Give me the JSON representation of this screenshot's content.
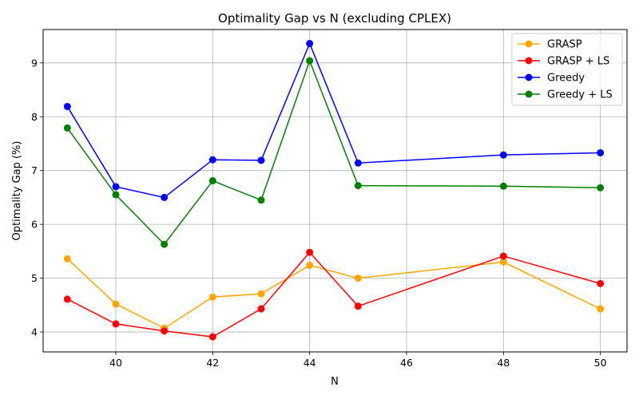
{
  "chart_data": {
    "type": "line",
    "title": "Optimality Gap vs N (excluding CPLEX)",
    "xlabel": "N",
    "ylabel": "Optimality Gap (%)",
    "xlim": [
      38.5,
      50.55
    ],
    "ylim": [
      3.63,
      9.62
    ],
    "xticks": [
      40,
      42,
      44,
      46,
      48,
      50
    ],
    "yticks": [
      4,
      5,
      6,
      7,
      8,
      9
    ],
    "grid": true,
    "legend_position": "top-right",
    "x": [
      39,
      40,
      41,
      42,
      43,
      44,
      45,
      48,
      50
    ],
    "series": [
      {
        "name": "GRASP",
        "color": "#ffa500",
        "values": [
          5.36,
          4.52,
          4.07,
          4.65,
          4.71,
          5.24,
          5.0,
          5.3,
          4.43
        ]
      },
      {
        "name": "GRASP + LS",
        "color": "#ff0000",
        "values": [
          4.61,
          4.15,
          4.02,
          3.91,
          4.43,
          5.48,
          4.48,
          5.41,
          4.9
        ]
      },
      {
        "name": "Greedy",
        "color": "#0000ff",
        "values": [
          8.19,
          6.7,
          6.5,
          7.2,
          7.19,
          9.36,
          7.14,
          7.29,
          7.33
        ]
      },
      {
        "name": "Greedy + LS",
        "color": "#008000",
        "values": [
          7.79,
          6.55,
          5.63,
          6.81,
          6.45,
          9.04,
          6.72,
          6.71,
          6.68
        ]
      }
    ]
  }
}
